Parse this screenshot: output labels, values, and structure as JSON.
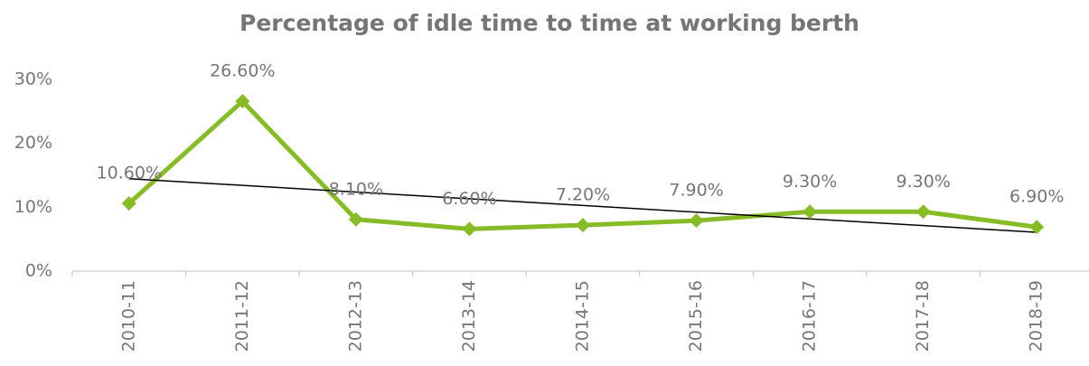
{
  "chart_data": {
    "type": "line",
    "title": "Percentage of idle time to time at working berth",
    "categories": [
      "2010-11",
      "2011-12",
      "2012-13",
      "2013-14",
      "2014-15",
      "2015-16",
      "2016-17",
      "2017-18",
      "2018-19"
    ],
    "series": [
      {
        "name": "Percentage of idle time",
        "color": "#86bc25",
        "values": [
          10.6,
          26.6,
          8.1,
          6.6,
          7.2,
          7.9,
          9.3,
          9.3,
          6.9
        ],
        "value_labels": [
          "10.60%",
          "26.60%",
          "8.10%",
          "6.60%",
          "7.20%",
          "7.90%",
          "9.30%",
          "9.30%",
          "6.90%"
        ]
      }
    ],
    "ylim": [
      0,
      30
    ],
    "yticks": [
      {
        "value": 0,
        "label": "0%"
      },
      {
        "value": 10,
        "label": "10%"
      },
      {
        "value": 20,
        "label": "20%"
      },
      {
        "value": 30,
        "label": "30%"
      }
    ],
    "grid": false,
    "trendline": {
      "type": "linear",
      "color": "#000000"
    }
  }
}
